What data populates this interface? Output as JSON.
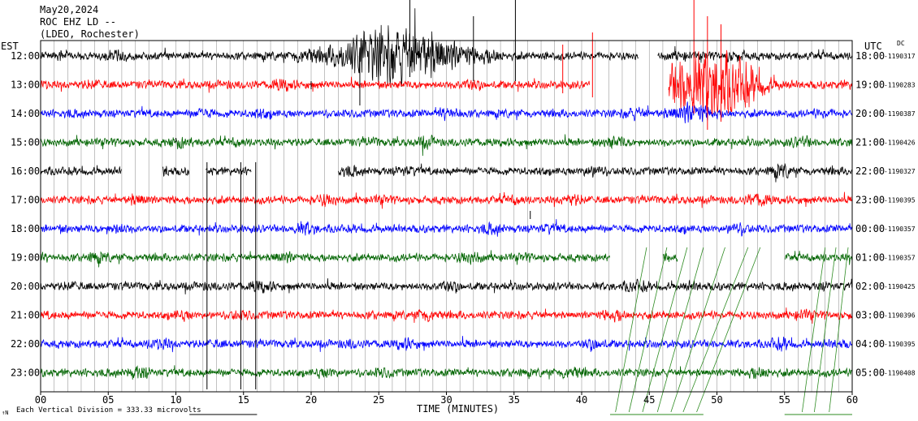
{
  "header": {
    "date": "May20,2024",
    "station": "ROC EHZ LD --",
    "network": "(LDEO, Rochester)"
  },
  "left_tz": "EST",
  "right_tz": "UTC",
  "dc_label": "DC",
  "xlabel": "TIME (MINUTES)",
  "footer": {
    "mark": "↑N",
    "division": "Each Vertical Division =  333.33 microvolts"
  },
  "colors": [
    "#000000",
    "#ff0000",
    "#0000ff",
    "#006400"
  ],
  "chart_data": {
    "type": "line",
    "title": "ROC EHZ LD --",
    "xlabel": "TIME (MINUTES)",
    "xlim": [
      0,
      60
    ],
    "x_ticks": [
      "00",
      "05",
      "10",
      "15",
      "20",
      "25",
      "30",
      "35",
      "40",
      "45",
      "50",
      "55",
      "60"
    ],
    "rows": [
      {
        "est": "12:00",
        "utc": "18:00",
        "dc": "-1190317",
        "gaps": [
          [
            44.2,
            45.6
          ]
        ],
        "bursts": [
          [
            26.5,
            4.0,
            6.0
          ],
          [
            24.0,
            2.5,
            3.0
          ],
          [
            29.0,
            2.5,
            3.0
          ]
        ]
      },
      {
        "est": "13:00",
        "utc": "19:00",
        "dc": "-1190283",
        "gaps": [
          [
            40.6,
            46.4
          ]
        ],
        "bursts": [
          [
            49.0,
            2.5,
            6.5
          ],
          [
            51.5,
            2.0,
            5.0
          ],
          [
            47.5,
            1.2,
            4.0
          ]
        ]
      },
      {
        "est": "14:00",
        "utc": "20:00",
        "dc": "-1190387",
        "gaps": [],
        "bursts": [
          [
            48.0,
            1.5,
            3.0
          ]
        ]
      },
      {
        "est": "15:00",
        "utc": "21:00",
        "dc": "-1190426",
        "gaps": [],
        "bursts": []
      },
      {
        "est": "16:00",
        "utc": "22:00",
        "dc": "-1190327",
        "gaps": [
          [
            6.0,
            9.0
          ],
          [
            11.0,
            12.2
          ],
          [
            15.6,
            22.0
          ]
        ],
        "bursts": []
      },
      {
        "est": "17:00",
        "utc": "23:00",
        "dc": "-1190395",
        "gaps": [],
        "bursts": []
      },
      {
        "est": "18:00",
        "utc": "00:00",
        "dc": "-1190357",
        "gaps": [],
        "bursts": []
      },
      {
        "est": "19:00",
        "utc": "01:00",
        "dc": "-1190357",
        "gaps": [
          [
            42.1,
            46.0
          ],
          [
            47.1,
            55.0
          ]
        ],
        "bursts": []
      },
      {
        "est": "20:00",
        "utc": "02:00",
        "dc": "-1190425",
        "gaps": [],
        "bursts": []
      },
      {
        "est": "21:00",
        "utc": "03:00",
        "dc": "-1190396",
        "gaps": [],
        "bursts": []
      },
      {
        "est": "22:00",
        "utc": "04:00",
        "dc": "-1190395",
        "gaps": [],
        "bursts": []
      },
      {
        "est": "23:00",
        "utc": "05:00",
        "dc": "-1190408",
        "gaps": [],
        "bursts": []
      }
    ]
  }
}
